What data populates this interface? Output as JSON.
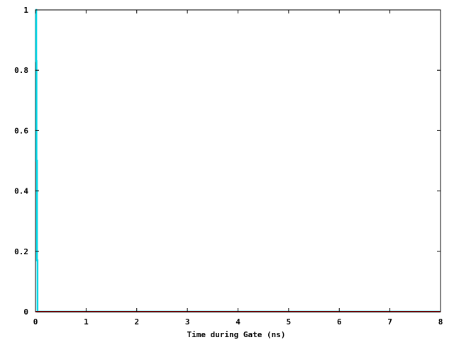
{
  "chart_data": {
    "type": "line",
    "title": "",
    "xlabel": "Time during Gate (ns)",
    "ylabel": "",
    "xlim": [
      0,
      8
    ],
    "ylim": [
      0,
      1
    ],
    "x_ticks": [
      "0",
      "1",
      "2",
      "3",
      "4",
      "5",
      "6",
      "7",
      "8"
    ],
    "y_ticks": [
      "0",
      "0.2",
      "0.4",
      "0.6",
      "0.8",
      "1"
    ],
    "grid": false,
    "legend": "none",
    "series": [
      {
        "color": "#00d8e8",
        "x": [
          0.0,
          0.015,
          0.015,
          0.02,
          0.02,
          0.03,
          0.03,
          0.04,
          0.04,
          0.05,
          0.05,
          8.0
        ],
        "y": [
          1.0,
          1.0,
          0.83,
          0.83,
          0.5,
          0.5,
          0.17,
          0.17,
          0.0,
          0.0,
          0.0,
          0.0
        ]
      },
      {
        "color": "#cc0000",
        "x": [
          0.0,
          8.0
        ],
        "y": [
          0.0,
          0.0
        ]
      },
      {
        "color": "#000000",
        "x": [
          0.0,
          8.0
        ],
        "y": [
          0.0,
          0.0
        ]
      }
    ]
  }
}
